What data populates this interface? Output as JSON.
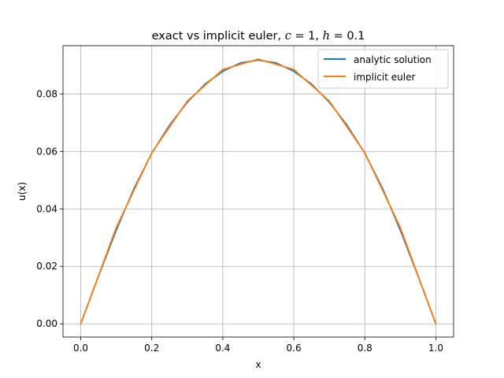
{
  "chart_data": {
    "type": "line",
    "title": "exact vs implicit euler, c = 1, h = 0.1",
    "title_parts": {
      "prefix": "exact vs implicit euler, ",
      "c_var": "c",
      "c_eq": " = 1, ",
      "h_var": "h",
      "h_eq": " = 0.1"
    },
    "xlabel": "x",
    "ylabel": "u(x)",
    "xlim": [
      -0.05,
      1.05
    ],
    "ylim": [
      -0.0046,
      0.0968
    ],
    "xticks": [
      0.0,
      0.2,
      0.4,
      0.6,
      0.8,
      1.0
    ],
    "xtick_labels": [
      "0.0",
      "0.2",
      "0.4",
      "0.6",
      "0.8",
      "1.0"
    ],
    "yticks": [
      0.0,
      0.02,
      0.04,
      0.06,
      0.08
    ],
    "ytick_labels": [
      "0.00",
      "0.02",
      "0.04",
      "0.06",
      "0.08"
    ],
    "grid": true,
    "legend_position": "top-right",
    "series": [
      {
        "name": "analytic solution",
        "color": "#1f77b4",
        "x": [
          0.0,
          0.05,
          0.1,
          0.15,
          0.2,
          0.25,
          0.3,
          0.35,
          0.4,
          0.45,
          0.5,
          0.55,
          0.6,
          0.65,
          0.7,
          0.75,
          0.8,
          0.85,
          0.9,
          0.95,
          1.0
        ],
        "y": [
          0.0,
          0.0166,
          0.0326,
          0.0471,
          0.0594,
          0.0691,
          0.0771,
          0.0834,
          0.0879,
          0.0908,
          0.0918,
          0.0908,
          0.0879,
          0.0834,
          0.0771,
          0.0691,
          0.0594,
          0.0471,
          0.0326,
          0.0166,
          0.0
        ]
      },
      {
        "name": "implicit euler",
        "color": "#ff7f0e",
        "x": [
          0.0,
          0.1,
          0.2,
          0.3,
          0.4,
          0.5,
          0.6,
          0.7,
          0.8,
          0.9,
          1.0
        ],
        "y": [
          0.0,
          0.0335,
          0.0595,
          0.0775,
          0.0885,
          0.0921,
          0.0885,
          0.0775,
          0.0595,
          0.0335,
          0.0
        ]
      }
    ]
  }
}
